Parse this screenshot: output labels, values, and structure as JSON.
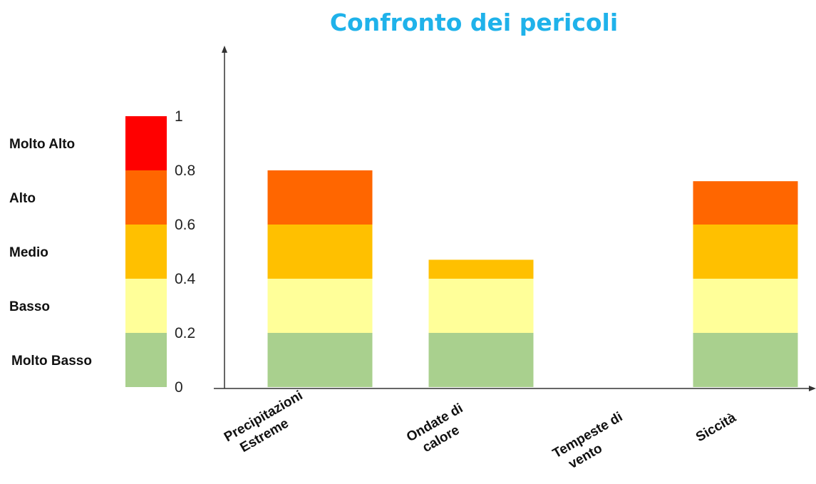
{
  "chart_data": {
    "type": "bar",
    "stacked": true,
    "title": "Confronto dei pericoli",
    "xlabel": "",
    "ylabel": "",
    "ylim": [
      0,
      1
    ],
    "yticks": [
      "0",
      "0.2",
      "0.4",
      "0.6",
      "0.8",
      "1"
    ],
    "grid": false,
    "categories": [
      [
        "Precipitazioni",
        "Estreme"
      ],
      [
        "Ondate di",
        "calore"
      ],
      [
        "Tempeste di",
        "vento"
      ],
      [
        "Siccità"
      ]
    ],
    "totals": [
      0.8,
      0.47,
      0,
      0.76
    ],
    "levels": [
      {
        "name": "Molto Basso",
        "min": 0.0,
        "max": 0.2,
        "color": "#a9d08e"
      },
      {
        "name": "Basso",
        "min": 0.2,
        "max": 0.4,
        "color": "#ffff99"
      },
      {
        "name": "Medio",
        "min": 0.4,
        "max": 0.6,
        "color": "#ffc000"
      },
      {
        "name": "Alto",
        "min": 0.6,
        "max": 0.8,
        "color": "#ff6600"
      },
      {
        "name": "Molto Alto",
        "min": 0.8,
        "max": 1.0,
        "color": "#ff0000"
      }
    ]
  }
}
